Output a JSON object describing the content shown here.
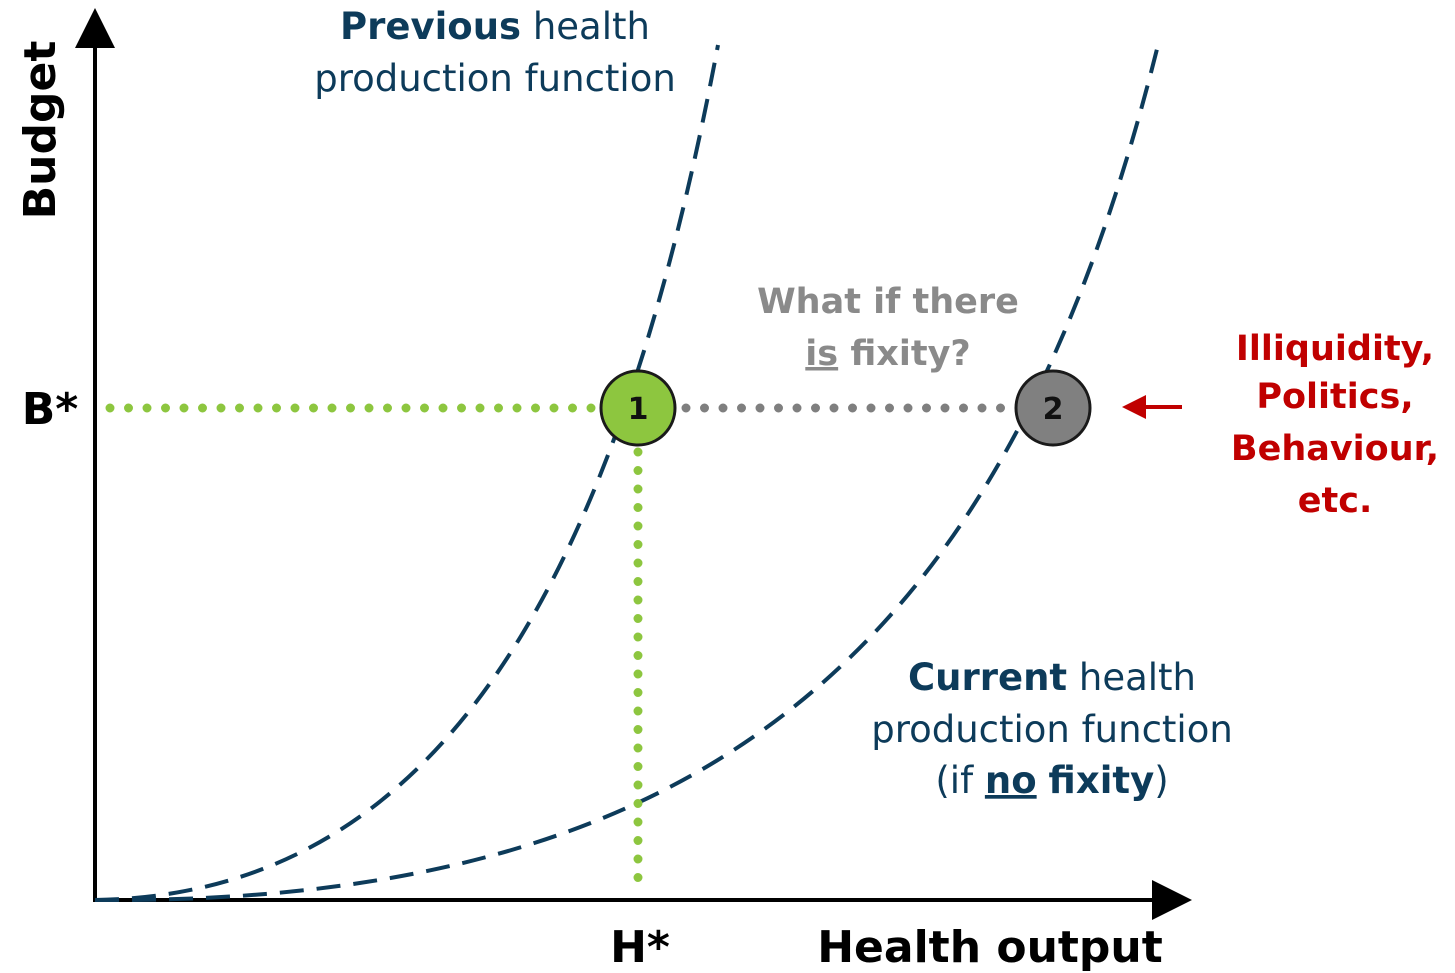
{
  "axes": {
    "y_label": "Budget",
    "x_label": "Health output",
    "y_marker": "B*",
    "x_marker": "H*"
  },
  "previous_curve": {
    "line1_bold": "Previous",
    "line1_rest": "health",
    "line2": "production function"
  },
  "current_curve": {
    "line1_bold": "Current",
    "line1_rest": "health",
    "line2": "production function",
    "line3_open": "(if",
    "line3_underlined": "no",
    "line3_bold": "fixity",
    "line3_close": ")"
  },
  "question": {
    "line1": "What if there",
    "line2_underlined": "is",
    "line2_rest": "fixity?"
  },
  "points": {
    "first": "1",
    "second": "2"
  },
  "factors": [
    "Illiquidity,",
    "Politics,",
    "Behaviour,",
    "etc."
  ]
}
